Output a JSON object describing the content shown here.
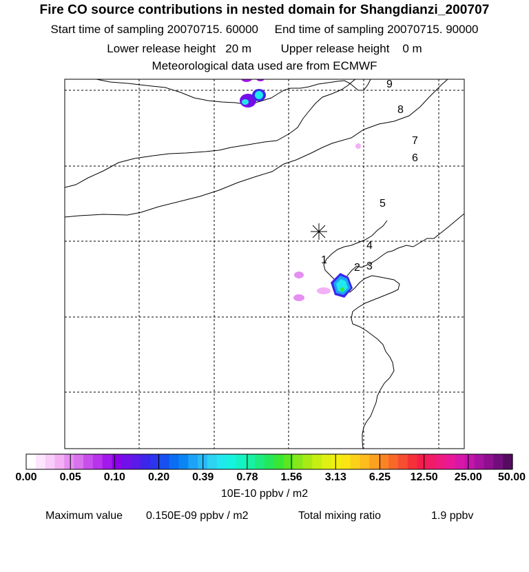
{
  "header": {
    "title": "Fire CO source contributions in nested domain for Shangdianzi_200707",
    "start_label": "Start time of sampling",
    "start_value": "20070715. 60000",
    "end_label": "End time of sampling",
    "end_value": "20070715. 90000",
    "lower_label": "Lower release height",
    "lower_value": "20 m",
    "upper_label": "Upper release height",
    "upper_value": "0 m",
    "met_line": "Meteorological data used are from ECMWF"
  },
  "chart_data": {
    "type": "heatmap",
    "title": "Fire CO source contributions in nested domain for Shangdianzi_200707",
    "colorbar": {
      "unit": "10E-10 ppbv / m2",
      "tick_labels": [
        "0.00",
        "0.05",
        "0.10",
        "0.20",
        "0.39",
        "0.78",
        "1.56",
        "3.13",
        "6.25",
        "12.50",
        "25.00",
        "50.00"
      ],
      "colors": [
        "#ffffff",
        "#fde6fd",
        "#f9ccf9",
        "#f3b0f5",
        "#e58ff0",
        "#d872ed",
        "#c84fec",
        "#b833ec",
        "#a318ea",
        "#8c00ea",
        "#7210ea",
        "#5a1ae9",
        "#3b26ea",
        "#2a35ec",
        "#1650f0",
        "#0a6ef2",
        "#0a86f4",
        "#1ca2f6",
        "#28baf6",
        "#2ed2f2",
        "#20e8ee",
        "#16f2e0",
        "#14f2c4",
        "#18f0a4",
        "#1cec80",
        "#24e85a",
        "#38e636",
        "#5ae620",
        "#86e81a",
        "#a8ea16",
        "#c6ee12",
        "#e0f012",
        "#f2ee10",
        "#fae412",
        "#fcd018",
        "#fcbc1c",
        "#fca020",
        "#fa8424",
        "#f86828",
        "#f64e30",
        "#f43038",
        "#f21e4a",
        "#f01c66",
        "#ee1a80",
        "#e81898",
        "#d816a8",
        "#c414ac",
        "#a812a0",
        "#8e1090",
        "#720e7c",
        "#540c60"
      ]
    },
    "receptor_labels": [
      "1",
      "2",
      "3",
      "4",
      "5",
      "6",
      "7",
      "8",
      "9"
    ],
    "receptor_symbol": "*",
    "maximum_value": "0.150E-09",
    "total_mixing_ratio": "1.9"
  },
  "footer": {
    "max_label": "Maximum value",
    "max_value": "0.150E-09 ppbv / m2",
    "total_label": "Total mixing ratio",
    "total_value": "1.9 ppbv"
  }
}
